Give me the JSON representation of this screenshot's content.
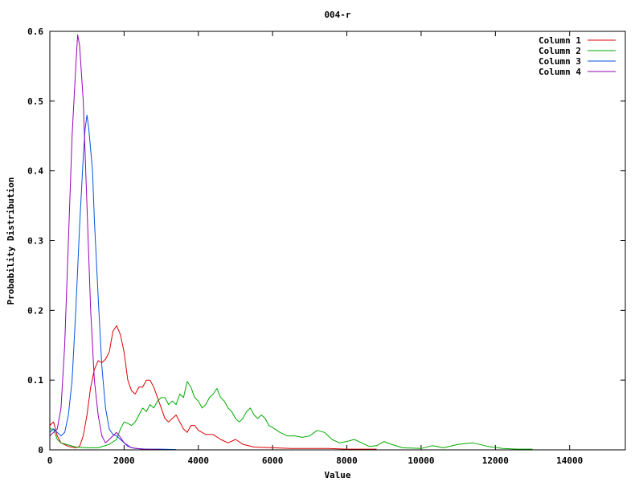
{
  "chart_data": {
    "type": "line",
    "title": "004-r",
    "xlabel": "Value",
    "ylabel": "Probability Distribution",
    "xlim": [
      0,
      15500
    ],
    "ylim": [
      0,
      0.6
    ],
    "xticks": [
      0,
      2000,
      4000,
      6000,
      8000,
      10000,
      12000,
      14000
    ],
    "xtick_labels": [
      "0",
      "2000",
      "4000",
      "6000",
      "8000",
      "10000",
      "12000",
      "14000"
    ],
    "yticks": [
      0,
      0.1,
      0.2,
      0.3,
      0.4,
      0.5,
      0.6
    ],
    "ytick_labels": [
      "0",
      "0.1",
      "0.2",
      "0.3",
      "0.4",
      "0.5",
      "0.6"
    ],
    "grid": false,
    "legend_position": "top-right",
    "series": [
      {
        "name": "Column 1",
        "color": "#dd0000",
        "points": [
          [
            0,
            0.035
          ],
          [
            100,
            0.04
          ],
          [
            200,
            0.02
          ],
          [
            300,
            0.01
          ],
          [
            500,
            0.005
          ],
          [
            700,
            0.003
          ],
          [
            800,
            0.005
          ],
          [
            900,
            0.02
          ],
          [
            1000,
            0.05
          ],
          [
            1100,
            0.09
          ],
          [
            1200,
            0.115
          ],
          [
            1300,
            0.128
          ],
          [
            1400,
            0.125
          ],
          [
            1500,
            0.13
          ],
          [
            1600,
            0.14
          ],
          [
            1700,
            0.17
          ],
          [
            1800,
            0.178
          ],
          [
            1900,
            0.165
          ],
          [
            2000,
            0.14
          ],
          [
            2100,
            0.1
          ],
          [
            2200,
            0.085
          ],
          [
            2300,
            0.08
          ],
          [
            2400,
            0.09
          ],
          [
            2500,
            0.09
          ],
          [
            2600,
            0.1
          ],
          [
            2700,
            0.1
          ],
          [
            2800,
            0.09
          ],
          [
            2900,
            0.075
          ],
          [
            3000,
            0.06
          ],
          [
            3100,
            0.045
          ],
          [
            3200,
            0.04
          ],
          [
            3300,
            0.045
          ],
          [
            3400,
            0.05
          ],
          [
            3500,
            0.04
          ],
          [
            3600,
            0.03
          ],
          [
            3700,
            0.025
          ],
          [
            3800,
            0.035
          ],
          [
            3900,
            0.035
          ],
          [
            4000,
            0.028
          ],
          [
            4200,
            0.022
          ],
          [
            4400,
            0.022
          ],
          [
            4600,
            0.015
          ],
          [
            4800,
            0.01
          ],
          [
            5000,
            0.015
          ],
          [
            5200,
            0.008
          ],
          [
            5500,
            0.004
          ],
          [
            6000,
            0.003
          ],
          [
            6500,
            0.002
          ],
          [
            7000,
            0.002
          ],
          [
            7500,
            0.002
          ],
          [
            8000,
            0.001
          ],
          [
            8800,
            0.001
          ]
        ]
      },
      {
        "name": "Column 2",
        "color": "#00aa00",
        "points": [
          [
            0,
            0.03
          ],
          [
            100,
            0.03
          ],
          [
            200,
            0.015
          ],
          [
            300,
            0.01
          ],
          [
            500,
            0.007
          ],
          [
            700,
            0.004
          ],
          [
            1000,
            0.003
          ],
          [
            1300,
            0.003
          ],
          [
            1600,
            0.008
          ],
          [
            1800,
            0.015
          ],
          [
            1900,
            0.03
          ],
          [
            2000,
            0.04
          ],
          [
            2100,
            0.038
          ],
          [
            2200,
            0.035
          ],
          [
            2300,
            0.04
          ],
          [
            2400,
            0.05
          ],
          [
            2500,
            0.06
          ],
          [
            2600,
            0.055
          ],
          [
            2700,
            0.065
          ],
          [
            2800,
            0.06
          ],
          [
            2900,
            0.07
          ],
          [
            3000,
            0.075
          ],
          [
            3100,
            0.075
          ],
          [
            3200,
            0.065
          ],
          [
            3300,
            0.07
          ],
          [
            3400,
            0.065
          ],
          [
            3500,
            0.08
          ],
          [
            3600,
            0.075
          ],
          [
            3700,
            0.098
          ],
          [
            3800,
            0.09
          ],
          [
            3900,
            0.075
          ],
          [
            4000,
            0.07
          ],
          [
            4100,
            0.06
          ],
          [
            4200,
            0.065
          ],
          [
            4300,
            0.075
          ],
          [
            4400,
            0.08
          ],
          [
            4500,
            0.088
          ],
          [
            4600,
            0.075
          ],
          [
            4700,
            0.07
          ],
          [
            4800,
            0.06
          ],
          [
            4900,
            0.055
          ],
          [
            5000,
            0.045
          ],
          [
            5100,
            0.04
          ],
          [
            5200,
            0.045
          ],
          [
            5300,
            0.055
          ],
          [
            5400,
            0.06
          ],
          [
            5500,
            0.05
          ],
          [
            5600,
            0.045
          ],
          [
            5700,
            0.05
          ],
          [
            5800,
            0.045
          ],
          [
            5900,
            0.035
          ],
          [
            6000,
            0.032
          ],
          [
            6200,
            0.025
          ],
          [
            6400,
            0.02
          ],
          [
            6600,
            0.02
          ],
          [
            6800,
            0.018
          ],
          [
            7000,
            0.02
          ],
          [
            7200,
            0.028
          ],
          [
            7400,
            0.025
          ],
          [
            7600,
            0.015
          ],
          [
            7800,
            0.01
          ],
          [
            8000,
            0.012
          ],
          [
            8200,
            0.015
          ],
          [
            8400,
            0.01
          ],
          [
            8600,
            0.005
          ],
          [
            8800,
            0.006
          ],
          [
            9000,
            0.012
          ],
          [
            9200,
            0.008
          ],
          [
            9500,
            0.003
          ],
          [
            10000,
            0.002
          ],
          [
            10300,
            0.006
          ],
          [
            10600,
            0.003
          ],
          [
            11000,
            0.008
          ],
          [
            11400,
            0.01
          ],
          [
            11800,
            0.005
          ],
          [
            12200,
            0.002
          ],
          [
            12600,
            0.001
          ],
          [
            13000,
            0.001
          ]
        ]
      },
      {
        "name": "Column 3",
        "color": "#0055dd",
        "points": [
          [
            0,
            0.025
          ],
          [
            100,
            0.03
          ],
          [
            200,
            0.025
          ],
          [
            300,
            0.02
          ],
          [
            400,
            0.025
          ],
          [
            500,
            0.05
          ],
          [
            600,
            0.1
          ],
          [
            700,
            0.2
          ],
          [
            800,
            0.32
          ],
          [
            900,
            0.42
          ],
          [
            950,
            0.46
          ],
          [
            1000,
            0.48
          ],
          [
            1050,
            0.46
          ],
          [
            1100,
            0.43
          ],
          [
            1150,
            0.4
          ],
          [
            1200,
            0.33
          ],
          [
            1300,
            0.22
          ],
          [
            1400,
            0.12
          ],
          [
            1500,
            0.06
          ],
          [
            1600,
            0.03
          ],
          [
            1700,
            0.022
          ],
          [
            1800,
            0.02
          ],
          [
            1900,
            0.015
          ],
          [
            2000,
            0.01
          ],
          [
            2100,
            0.005
          ],
          [
            2300,
            0.002
          ],
          [
            2600,
            0.001
          ],
          [
            3000,
            0.001
          ],
          [
            3400,
            0.0005
          ]
        ]
      },
      {
        "name": "Column 4",
        "color": "#9900bb",
        "points": [
          [
            0,
            0.02
          ],
          [
            100,
            0.025
          ],
          [
            200,
            0.03
          ],
          [
            300,
            0.06
          ],
          [
            400,
            0.15
          ],
          [
            500,
            0.3
          ],
          [
            600,
            0.45
          ],
          [
            700,
            0.55
          ],
          [
            750,
            0.595
          ],
          [
            800,
            0.58
          ],
          [
            900,
            0.5
          ],
          [
            1000,
            0.35
          ],
          [
            1100,
            0.2
          ],
          [
            1200,
            0.1
          ],
          [
            1300,
            0.05
          ],
          [
            1400,
            0.02
          ],
          [
            1500,
            0.01
          ],
          [
            1600,
            0.015
          ],
          [
            1700,
            0.02
          ],
          [
            1800,
            0.025
          ],
          [
            1900,
            0.018
          ],
          [
            2000,
            0.01
          ],
          [
            2200,
            0.003
          ],
          [
            2500,
            0.001
          ],
          [
            3000,
            0.0005
          ]
        ]
      }
    ]
  }
}
